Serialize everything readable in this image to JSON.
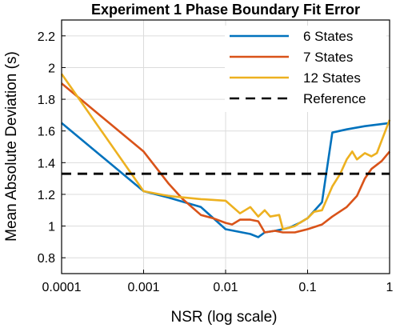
{
  "chart_data": {
    "type": "line",
    "title": "Experiment 1 Phase Boundary Fit Error",
    "xlabel": "NSR (log scale)",
    "ylabel": "Mean Absolute Deviation (s)",
    "x_scale": "log",
    "xlim": [
      0.0001,
      1
    ],
    "ylim": [
      0.7,
      2.3
    ],
    "x_ticks": [
      0.0001,
      0.001,
      0.01,
      0.1,
      1
    ],
    "x_tick_labels": [
      "0.0001",
      "0.001",
      "0.01",
      "0.1",
      "1"
    ],
    "y_ticks": [
      0.8,
      1,
      1.2,
      1.4,
      1.6,
      1.8,
      2,
      2.2
    ],
    "y_tick_labels": [
      "0.8",
      "1",
      "1.2",
      "1.4",
      "1.6",
      "1.8",
      "2",
      "2.2"
    ],
    "grid": true,
    "legend_position": "top-right",
    "series": [
      {
        "name": "6 States",
        "color": "#0072BD",
        "style": "solid",
        "points": [
          [
            0.0001,
            1.65
          ],
          [
            0.001,
            1.22
          ],
          [
            0.002,
            1.18
          ],
          [
            0.005,
            1.12
          ],
          [
            0.01,
            0.98
          ],
          [
            0.02,
            0.95
          ],
          [
            0.025,
            0.93
          ],
          [
            0.03,
            0.96
          ],
          [
            0.04,
            0.97
          ],
          [
            0.05,
            0.98
          ],
          [
            0.06,
            0.99
          ],
          [
            0.08,
            1.02
          ],
          [
            0.1,
            1.05
          ],
          [
            0.15,
            1.15
          ],
          [
            0.2,
            1.59
          ],
          [
            0.3,
            1.61
          ],
          [
            0.5,
            1.63
          ],
          [
            1.0,
            1.65
          ]
        ]
      },
      {
        "name": "7 States",
        "color": "#D95319",
        "style": "solid",
        "points": [
          [
            0.0001,
            1.9
          ],
          [
            0.001,
            1.47
          ],
          [
            0.002,
            1.27
          ],
          [
            0.003,
            1.17
          ],
          [
            0.005,
            1.07
          ],
          [
            0.007,
            1.05
          ],
          [
            0.01,
            1.02
          ],
          [
            0.012,
            1.01
          ],
          [
            0.015,
            1.04
          ],
          [
            0.02,
            1.04
          ],
          [
            0.025,
            1.03
          ],
          [
            0.03,
            0.96
          ],
          [
            0.04,
            0.97
          ],
          [
            0.05,
            0.96
          ],
          [
            0.07,
            0.96
          ],
          [
            0.1,
            0.98
          ],
          [
            0.15,
            1.01
          ],
          [
            0.2,
            1.06
          ],
          [
            0.3,
            1.12
          ],
          [
            0.4,
            1.19
          ],
          [
            0.5,
            1.3
          ],
          [
            0.6,
            1.36
          ],
          [
            0.8,
            1.41
          ],
          [
            1.0,
            1.47
          ]
        ]
      },
      {
        "name": "12 States",
        "color": "#EDB120",
        "style": "solid",
        "points": [
          [
            0.0001,
            1.96
          ],
          [
            0.001,
            1.22
          ],
          [
            0.002,
            1.19
          ],
          [
            0.005,
            1.17
          ],
          [
            0.01,
            1.16
          ],
          [
            0.015,
            1.08
          ],
          [
            0.02,
            1.12
          ],
          [
            0.025,
            1.06
          ],
          [
            0.03,
            1.1
          ],
          [
            0.035,
            1.06
          ],
          [
            0.045,
            1.07
          ],
          [
            0.05,
            0.98
          ],
          [
            0.06,
            0.99
          ],
          [
            0.07,
            1.0
          ],
          [
            0.08,
            1.02
          ],
          [
            0.1,
            1.05
          ],
          [
            0.12,
            1.09
          ],
          [
            0.15,
            1.1
          ],
          [
            0.2,
            1.25
          ],
          [
            0.25,
            1.33
          ],
          [
            0.3,
            1.42
          ],
          [
            0.35,
            1.47
          ],
          [
            0.4,
            1.42
          ],
          [
            0.5,
            1.46
          ],
          [
            0.6,
            1.44
          ],
          [
            0.7,
            1.46
          ],
          [
            1.0,
            1.67
          ]
        ]
      },
      {
        "name": "Reference",
        "color": "#000000",
        "style": "dashed",
        "points": [
          [
            0.0001,
            1.33
          ],
          [
            1.0,
            1.33
          ]
        ]
      }
    ]
  }
}
